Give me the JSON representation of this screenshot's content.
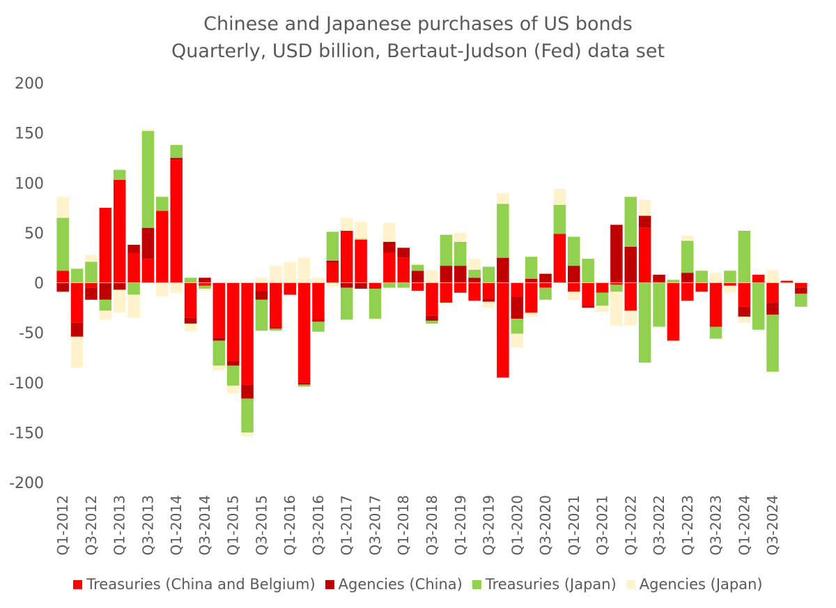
{
  "chart_data": {
    "type": "bar",
    "stacked": true,
    "title": "Chinese and Japanese purchases of US bonds",
    "subtitle": "Quarterly, USD billion, Bertaut-Judson (Fed) data set",
    "ylim": [
      -200,
      200
    ],
    "yticks": [
      200,
      150,
      100,
      50,
      0,
      -50,
      -100,
      -150,
      -200
    ],
    "grid": false,
    "legend_position": "bottom",
    "x_tick_labels": [
      "Q1-2012",
      "Q3-2012",
      "Q1-2013",
      "Q3-2013",
      "Q1-2014",
      "Q3-2014",
      "Q1-2015",
      "Q3-2015",
      "Q1-2016",
      "Q3-2016",
      "Q1-2017",
      "Q3-2017",
      "Q1-2018",
      "Q3-2018",
      "Q1-2019",
      "Q3-2019",
      "Q1-2020",
      "Q3-2020",
      "Q1-2021",
      "Q3-2021",
      "Q1-2022",
      "Q3-2022",
      "Q1-2023",
      "Q3-2023",
      "Q1-2024",
      "Q3-2024"
    ],
    "categories": [
      "Q1-2012",
      "Q2-2012",
      "Q3-2012",
      "Q4-2012",
      "Q1-2013",
      "Q2-2013",
      "Q3-2013",
      "Q4-2013",
      "Q1-2014",
      "Q2-2014",
      "Q3-2014",
      "Q4-2014",
      "Q1-2015",
      "Q2-2015",
      "Q3-2015",
      "Q4-2015",
      "Q1-2016",
      "Q2-2016",
      "Q3-2016",
      "Q4-2016",
      "Q1-2017",
      "Q2-2017",
      "Q3-2017",
      "Q4-2017",
      "Q1-2018",
      "Q2-2018",
      "Q3-2018",
      "Q4-2018",
      "Q1-2019",
      "Q2-2019",
      "Q3-2019",
      "Q4-2019",
      "Q1-2020",
      "Q2-2020",
      "Q3-2020",
      "Q4-2020",
      "Q1-2021",
      "Q2-2021",
      "Q3-2021",
      "Q4-2021",
      "Q1-2022",
      "Q2-2022",
      "Q3-2022",
      "Q4-2022",
      "Q1-2023",
      "Q2-2023",
      "Q3-2023",
      "Q4-2023",
      "Q1-2024",
      "Q2-2024",
      "Q3-2024",
      "Q4-2024",
      "Q1-2025"
    ],
    "series": [
      {
        "name": "Treasuries (China and Belgium)",
        "color": "#ff0000",
        "values": [
          12,
          -40,
          -5,
          75,
          103,
          30,
          24,
          72,
          123,
          -35,
          -3,
          -55,
          -78,
          -102,
          -8,
          -45,
          -12,
          -100,
          -37,
          20,
          52,
          43,
          -6,
          30,
          25,
          -8,
          -33,
          -20,
          -10,
          -18,
          -16,
          -95,
          -14,
          -30,
          -5,
          49,
          -9,
          -23,
          -10,
          -2,
          -28,
          55,
          1,
          -57,
          -18,
          -9,
          -43,
          -3,
          -24,
          8,
          -20,
          2,
          -5
        ]
      },
      {
        "name": "Agencies (China)",
        "color": "#c00000",
        "values": [
          -9,
          -14,
          -12,
          -17,
          -7,
          8,
          31,
          0,
          2,
          -6,
          5,
          -3,
          -5,
          -14,
          -9,
          -1,
          0,
          -2,
          -2,
          2,
          -5,
          -6,
          0,
          11,
          10,
          12,
          -5,
          17,
          17,
          5,
          -3,
          25,
          -22,
          4,
          9,
          0,
          17,
          -2,
          0,
          58,
          36,
          12,
          7,
          -1,
          10,
          0,
          -1,
          0,
          -10,
          0,
          -12,
          0,
          -6
        ]
      },
      {
        "name": "Treasuries (Japan)",
        "color": "#92d050",
        "values": [
          53,
          14,
          21,
          -11,
          10,
          -12,
          97,
          14,
          13,
          5,
          -3,
          -25,
          -20,
          -34,
          -31,
          -2,
          0,
          -2,
          -10,
          29,
          -32,
          1,
          -30,
          -5,
          -5,
          6,
          -3,
          31,
          24,
          8,
          16,
          54,
          -15,
          22,
          -12,
          29,
          29,
          24,
          -13,
          -7,
          50,
          -80,
          -44,
          3,
          32,
          12,
          -12,
          12,
          52,
          -47,
          -57,
          0,
          -13
        ]
      },
      {
        "name": "Agencies (Japan)",
        "color": "#fff2cc",
        "values": [
          21,
          -31,
          7,
          -9,
          -23,
          -23,
          2,
          -14,
          -10,
          -8,
          -2,
          -5,
          -8,
          -4,
          5,
          17,
          21,
          25,
          5,
          -4,
          13,
          17,
          -1,
          19,
          0,
          1,
          13,
          -1,
          9,
          11,
          -6,
          11,
          -14,
          -4,
          1,
          16,
          -8,
          0,
          -6,
          -34,
          -15,
          16,
          -1,
          -0.5,
          5,
          0,
          10,
          -7,
          -6,
          0,
          13,
          -1,
          0
        ]
      }
    ]
  }
}
